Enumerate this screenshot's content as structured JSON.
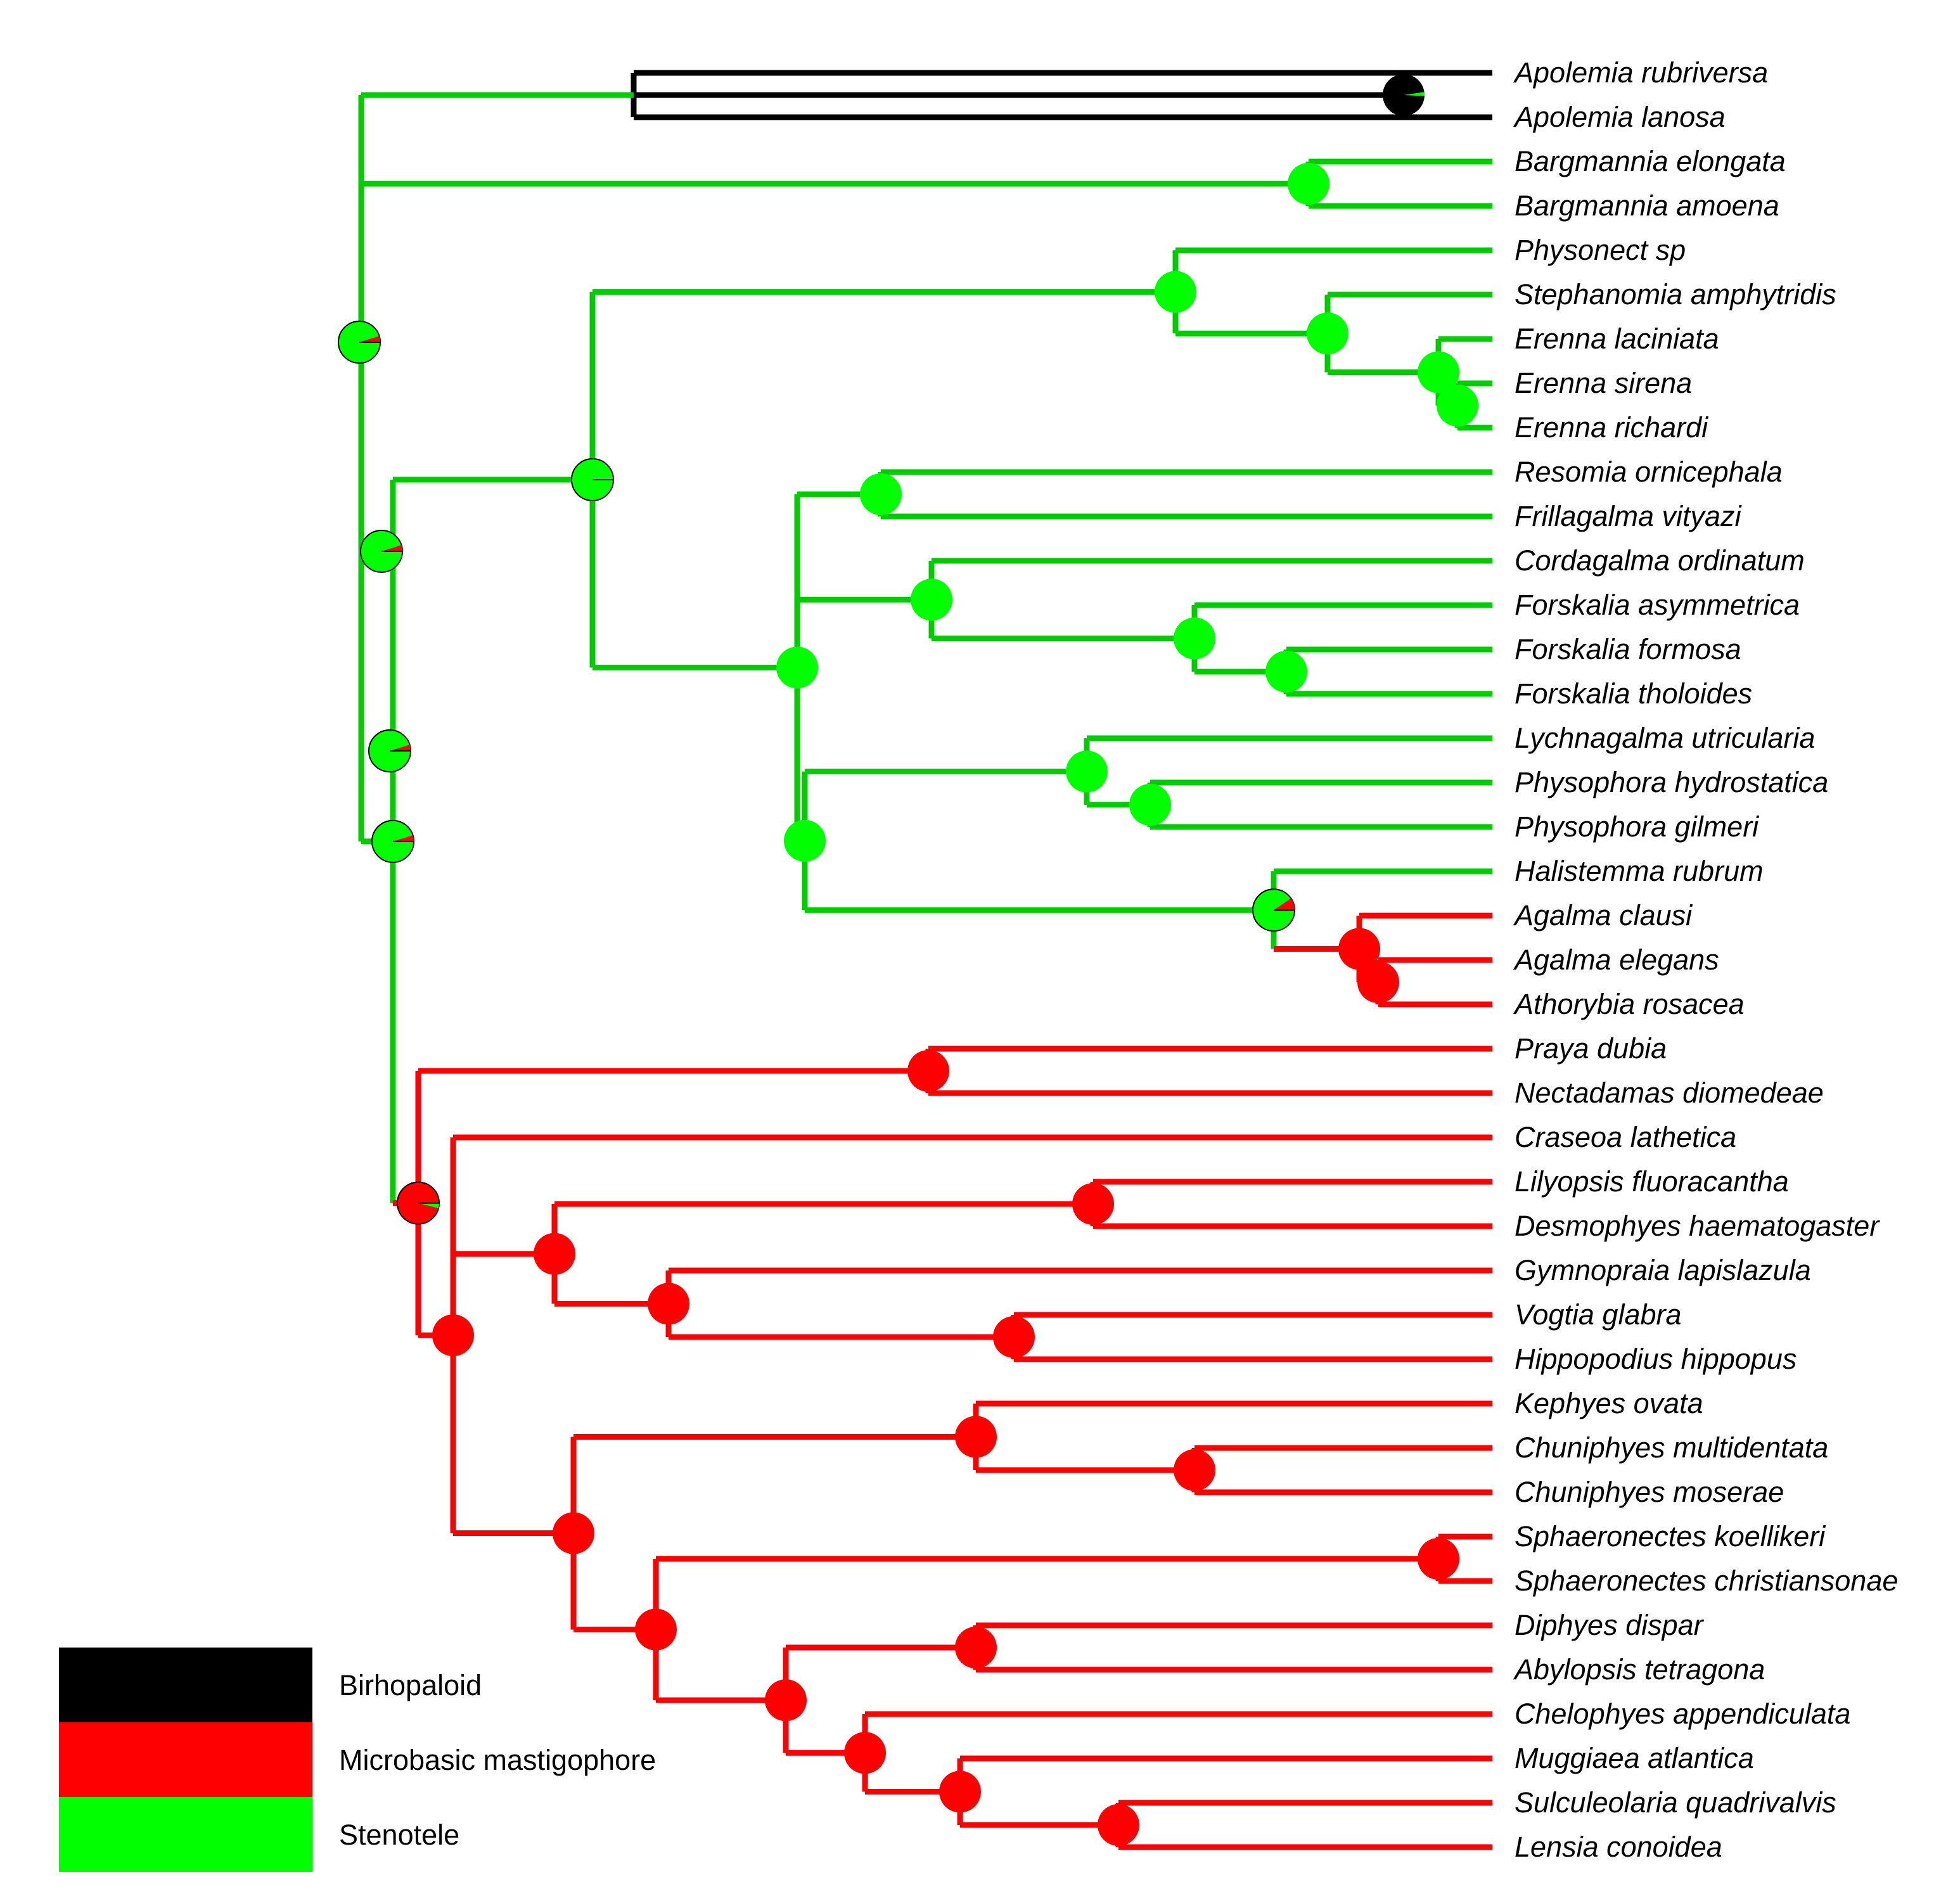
{
  "taxa": [
    "Apolemia rubriversa",
    "Apolemia lanosa",
    "Bargmannia elongata",
    "Bargmannia amoena",
    "Physonect sp",
    "Stephanomia amphytridis",
    "Erenna laciniata",
    "Erenna sirena",
    "Erenna richardi",
    "Resomia ornicephala",
    "Frillagalma vityazi",
    "Cordagalma ordinatum",
    "Forskalia asymmetrica",
    "Forskalia formosa",
    "Forskalia tholoides",
    "Lychnagalma utricularia",
    "Physophora hydrostatica",
    "Physophora gilmeri",
    "Halistemma rubrum",
    "Agalma clausi",
    "Agalma elegans",
    "Athorybia rosacea",
    "Praya dubia",
    "Nectadamas diomedeae",
    "Craseoa lathetica",
    "Lilyopsis fluoracantha",
    "Desmophyes haematogaster",
    "Gymnopraia lapislazula",
    "Vogtia glabra",
    "Hippopodius hippopus",
    "Kephyes ovata",
    "Chuniphyes multidentata",
    "Chuniphyes moserae",
    "Sphaeronectes koellikeri",
    "Sphaeronectes christiansonae",
    "Diphyes dispar",
    "Abylopsis tetragona",
    "Chelophyes appendiculata",
    "Muggiaea atlantica",
    "Sulculeolaria quadrivalvis",
    "Lensia conoidea"
  ],
  "legend": [
    {
      "label": "Birhopaloid",
      "color": "#000000"
    },
    {
      "label": "Microbasic mastigophore",
      "color": "#ff0000"
    },
    {
      "label": "Stenotele",
      "color": "#00ff00"
    }
  ],
  "colors": {
    "stenotele_branch": "#00cc00",
    "stenotele_node": "#00ff00",
    "microbasic": "#ff0000",
    "birhopaloid": "#000000"
  }
}
